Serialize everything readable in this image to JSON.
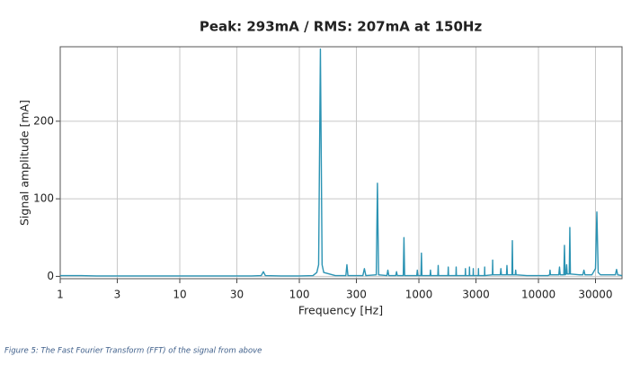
{
  "chart_data": {
    "type": "line",
    "title": "Peak: 293mA / RMS: 207mA at 150Hz",
    "x_label": "Frequency [Hz]",
    "y_label": "Signal amplitude [mA]",
    "xscale": "log",
    "grid": true,
    "color": "#2b93b3",
    "xlim": [
      1,
      50000
    ],
    "xticks": [
      1,
      3,
      10,
      30,
      100,
      300,
      1000,
      3000,
      10000,
      30000
    ],
    "ylim": [
      -3,
      296
    ],
    "yticks": [
      0,
      100,
      200
    ],
    "x": [
      1,
      1.5,
      2,
      3,
      5,
      8,
      15,
      25,
      40,
      48,
      50,
      52,
      70,
      100,
      130,
      140,
      145,
      150,
      155,
      160,
      200,
      245,
      250,
      255,
      340,
      350,
      360,
      440,
      450,
      460,
      540,
      550,
      560,
      640,
      650,
      660,
      740,
      750,
      760,
      960,
      970,
      980,
      1040,
      1050,
      1060,
      1240,
      1250,
      1260,
      1440,
      1450,
      1460,
      1750,
      1760,
      1770,
      2040,
      2050,
      2060,
      2440,
      2450,
      2460,
      2640,
      2650,
      2660,
      2840,
      2850,
      2860,
      3140,
      3150,
      3160,
      3540,
      3550,
      3560,
      4120,
      4140,
      4160,
      4800,
      4850,
      4900,
      5400,
      5450,
      5500,
      6000,
      6050,
      6100,
      6400,
      6450,
      6500,
      8000,
      12000,
      12400,
      12500,
      12600,
      14800,
      15000,
      15200,
      16300,
      16500,
      16700,
      17000,
      17200,
      17400,
      18100,
      18300,
      18500,
      22000,
      23500,
      24000,
      24500,
      28000,
      30000,
      30800,
      31600,
      33000,
      40000,
      44000,
      45000,
      46000,
      50000
    ],
    "values": [
      1,
      1,
      0.5,
      0.5,
      0.5,
      0.5,
      0.5,
      0.5,
      0.5,
      1,
      6,
      1,
      0.5,
      0.5,
      1,
      5,
      15,
      293,
      15,
      5,
      1,
      1,
      15,
      1,
      1,
      10,
      1,
      2,
      120,
      2,
      1,
      8,
      1,
      1,
      6,
      1,
      1,
      50,
      1,
      1,
      8,
      1,
      1,
      30,
      1,
      1,
      8,
      1,
      1,
      14,
      1,
      1,
      12,
      1,
      1,
      12,
      1,
      1,
      10,
      1,
      1,
      12,
      1,
      1,
      10,
      1,
      1,
      10,
      1,
      1,
      12,
      1,
      2,
      21,
      2,
      2,
      10,
      2,
      2,
      14,
      2,
      2,
      46,
      2,
      2,
      8,
      2,
      1,
      1,
      2,
      8,
      2,
      2,
      12,
      2,
      2,
      40,
      2,
      3,
      15,
      3,
      3,
      63,
      3,
      2,
      2,
      8,
      2,
      2,
      10,
      83,
      5,
      2,
      2,
      2,
      9,
      2,
      1
    ]
  },
  "caption": "Figure 5: The Fast Fourier Transform (FFT) of the signal from above"
}
